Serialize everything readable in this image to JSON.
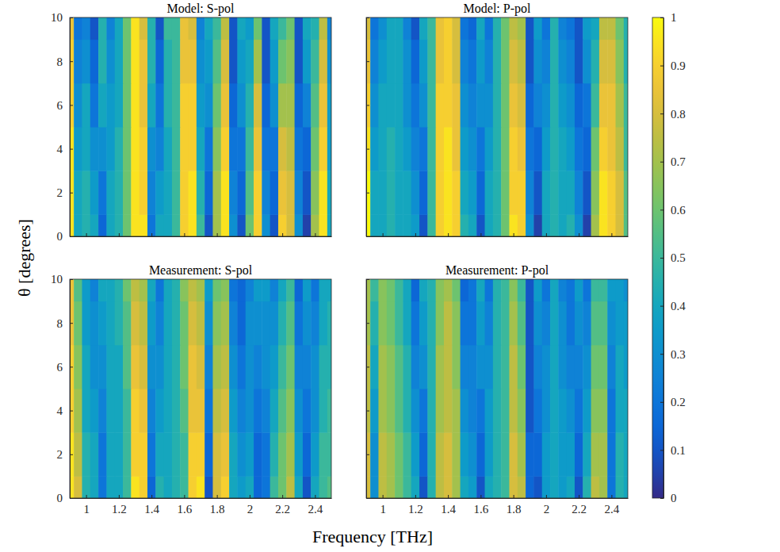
{
  "chart_data": {
    "type": "heatmap",
    "xlabel": "Frequency [THz]",
    "ylabel": "θ [degrees]",
    "x": [
      0.9,
      0.95,
      1.0,
      1.05,
      1.1,
      1.15,
      1.2,
      1.25,
      1.3,
      1.35,
      1.4,
      1.45,
      1.5,
      1.55,
      1.6,
      1.65,
      1.7,
      1.75,
      1.8,
      1.85,
      1.9,
      1.95,
      2.0,
      2.05,
      2.1,
      2.15,
      2.2,
      2.25,
      2.3,
      2.35,
      2.4,
      2.45,
      2.5
    ],
    "y": [
      0,
      2,
      4,
      6,
      8,
      10
    ],
    "xlim": [
      0.9,
      2.5
    ],
    "ylim": [
      0,
      10
    ],
    "xticks": [
      1,
      1.2,
      1.4,
      1.6,
      1.8,
      2,
      2.2,
      2.4
    ],
    "yticks": [
      0,
      2,
      4,
      6,
      8,
      10
    ],
    "colorbar": {
      "range": [
        0,
        1
      ],
      "ticks": [
        0,
        0.1,
        0.2,
        0.3,
        0.4,
        0.5,
        0.6,
        0.7,
        0.8,
        0.9,
        1
      ]
    },
    "panels": [
      {
        "title": "Model: S-pol",
        "tick_labels": "y",
        "z": [
          [
            0.95,
            0.4,
            0.45,
            0.4,
            0.15,
            0.4,
            0.45,
            0.6,
            0.95,
            0.95,
            0.2,
            0.4,
            0.4,
            0.5,
            0.9,
            0.95,
            0.5,
            0.1,
            0.7,
            0.95,
            0.3,
            0.1,
            0.6,
            0.9,
            0.3,
            0.1,
            0.9,
            0.8,
            0.3,
            0.05,
            0.7,
            0.95,
            0.4
          ],
          [
            0.95,
            0.4,
            0.45,
            0.35,
            0.2,
            0.4,
            0.45,
            0.6,
            0.95,
            0.9,
            0.25,
            0.35,
            0.4,
            0.5,
            0.9,
            0.95,
            0.45,
            0.15,
            0.7,
            0.95,
            0.25,
            0.15,
            0.55,
            0.9,
            0.25,
            0.15,
            0.85,
            0.8,
            0.25,
            0.1,
            0.65,
            0.95,
            0.4
          ],
          [
            0.95,
            0.35,
            0.4,
            0.3,
            0.3,
            0.35,
            0.45,
            0.6,
            0.95,
            0.9,
            0.3,
            0.25,
            0.4,
            0.5,
            0.9,
            0.9,
            0.4,
            0.2,
            0.65,
            0.9,
            0.2,
            0.2,
            0.5,
            0.85,
            0.2,
            0.2,
            0.8,
            0.75,
            0.2,
            0.15,
            0.6,
            0.9,
            0.35
          ],
          [
            0.9,
            0.3,
            0.4,
            0.2,
            0.4,
            0.35,
            0.4,
            0.6,
            0.95,
            0.85,
            0.4,
            0.2,
            0.45,
            0.5,
            0.9,
            0.9,
            0.35,
            0.3,
            0.6,
            0.85,
            0.15,
            0.3,
            0.45,
            0.8,
            0.15,
            0.3,
            0.7,
            0.7,
            0.15,
            0.25,
            0.55,
            0.85,
            0.35
          ],
          [
            0.9,
            0.25,
            0.3,
            0.15,
            0.45,
            0.3,
            0.4,
            0.6,
            0.95,
            0.85,
            0.45,
            0.15,
            0.45,
            0.5,
            0.85,
            0.85,
            0.3,
            0.35,
            0.55,
            0.8,
            0.1,
            0.35,
            0.4,
            0.7,
            0.1,
            0.35,
            0.6,
            0.65,
            0.1,
            0.35,
            0.5,
            0.8,
            0.3
          ],
          [
            0.85,
            0.2,
            0.25,
            0.1,
            0.45,
            0.25,
            0.4,
            0.6,
            0.95,
            0.8,
            0.45,
            0.1,
            0.5,
            0.5,
            0.85,
            0.8,
            0.25,
            0.4,
            0.5,
            0.75,
            0.1,
            0.4,
            0.35,
            0.6,
            0.1,
            0.4,
            0.5,
            0.6,
            0.1,
            0.4,
            0.45,
            0.75,
            0.25
          ]
        ]
      },
      {
        "title": "Model: P-pol",
        "tick_labels": false,
        "z": [
          [
            1.0,
            0.4,
            0.4,
            0.45,
            0.4,
            0.4,
            0.35,
            0.1,
            0.5,
            0.9,
            0.95,
            0.9,
            0.45,
            0.4,
            0.1,
            0.4,
            0.45,
            0.6,
            0.95,
            0.9,
            0.3,
            0.05,
            0.4,
            0.45,
            0.4,
            0.45,
            0.3,
            0.05,
            0.7,
            0.95,
            0.9,
            0.8,
            0.55
          ],
          [
            1.0,
            0.4,
            0.4,
            0.45,
            0.4,
            0.4,
            0.3,
            0.15,
            0.5,
            0.9,
            0.95,
            0.9,
            0.4,
            0.35,
            0.15,
            0.4,
            0.45,
            0.6,
            0.9,
            0.9,
            0.25,
            0.1,
            0.4,
            0.45,
            0.4,
            0.4,
            0.25,
            0.1,
            0.65,
            0.95,
            0.9,
            0.8,
            0.55
          ],
          [
            0.95,
            0.35,
            0.4,
            0.45,
            0.4,
            0.35,
            0.25,
            0.2,
            0.5,
            0.9,
            0.95,
            0.85,
            0.35,
            0.3,
            0.2,
            0.35,
            0.45,
            0.6,
            0.9,
            0.85,
            0.2,
            0.15,
            0.35,
            0.45,
            0.4,
            0.35,
            0.2,
            0.15,
            0.6,
            0.9,
            0.85,
            0.75,
            0.5
          ],
          [
            0.9,
            0.3,
            0.4,
            0.4,
            0.4,
            0.3,
            0.2,
            0.3,
            0.5,
            0.9,
            0.9,
            0.85,
            0.3,
            0.25,
            0.3,
            0.3,
            0.45,
            0.6,
            0.85,
            0.8,
            0.15,
            0.25,
            0.3,
            0.45,
            0.35,
            0.3,
            0.15,
            0.2,
            0.5,
            0.85,
            0.85,
            0.7,
            0.5
          ],
          [
            0.85,
            0.25,
            0.35,
            0.4,
            0.4,
            0.3,
            0.15,
            0.35,
            0.5,
            0.85,
            0.9,
            0.8,
            0.25,
            0.2,
            0.35,
            0.25,
            0.45,
            0.6,
            0.8,
            0.75,
            0.1,
            0.3,
            0.25,
            0.45,
            0.3,
            0.25,
            0.1,
            0.3,
            0.45,
            0.8,
            0.8,
            0.65,
            0.45
          ],
          [
            0.8,
            0.2,
            0.3,
            0.4,
            0.4,
            0.25,
            0.1,
            0.4,
            0.5,
            0.85,
            0.9,
            0.8,
            0.2,
            0.15,
            0.4,
            0.2,
            0.45,
            0.6,
            0.75,
            0.7,
            0.1,
            0.35,
            0.2,
            0.45,
            0.25,
            0.2,
            0.1,
            0.35,
            0.4,
            0.75,
            0.75,
            0.6,
            0.45
          ]
        ]
      },
      {
        "title": "Measurement: S-pol",
        "tick_labels": true,
        "z": [
          [
            0.95,
            0.8,
            0.45,
            0.4,
            0.2,
            0.4,
            0.4,
            0.5,
            0.95,
            0.9,
            0.15,
            0.45,
            0.4,
            0.45,
            0.5,
            0.9,
            0.95,
            0.1,
            0.8,
            0.9,
            0.4,
            0.35,
            0.4,
            0.15,
            0.2,
            0.5,
            0.6,
            0.75,
            0.4,
            0.1,
            0.4,
            0.5,
            0.55
          ],
          [
            0.95,
            0.75,
            0.45,
            0.4,
            0.2,
            0.4,
            0.4,
            0.5,
            0.9,
            0.9,
            0.2,
            0.4,
            0.4,
            0.45,
            0.5,
            0.9,
            0.9,
            0.15,
            0.8,
            0.85,
            0.4,
            0.3,
            0.35,
            0.15,
            0.2,
            0.45,
            0.6,
            0.7,
            0.35,
            0.15,
            0.35,
            0.5,
            0.5
          ],
          [
            0.9,
            0.7,
            0.4,
            0.35,
            0.25,
            0.4,
            0.4,
            0.5,
            0.9,
            0.85,
            0.25,
            0.35,
            0.4,
            0.45,
            0.55,
            0.85,
            0.85,
            0.2,
            0.75,
            0.8,
            0.35,
            0.25,
            0.3,
            0.2,
            0.25,
            0.4,
            0.55,
            0.65,
            0.3,
            0.2,
            0.3,
            0.45,
            0.5
          ],
          [
            0.9,
            0.65,
            0.4,
            0.3,
            0.3,
            0.4,
            0.4,
            0.55,
            0.85,
            0.8,
            0.3,
            0.3,
            0.4,
            0.45,
            0.6,
            0.85,
            0.8,
            0.25,
            0.7,
            0.75,
            0.3,
            0.2,
            0.3,
            0.25,
            0.3,
            0.35,
            0.5,
            0.6,
            0.25,
            0.25,
            0.3,
            0.45,
            0.45
          ],
          [
            0.85,
            0.6,
            0.35,
            0.3,
            0.35,
            0.4,
            0.45,
            0.55,
            0.8,
            0.75,
            0.35,
            0.25,
            0.4,
            0.45,
            0.6,
            0.8,
            0.75,
            0.3,
            0.65,
            0.7,
            0.25,
            0.15,
            0.3,
            0.3,
            0.3,
            0.3,
            0.45,
            0.55,
            0.2,
            0.3,
            0.25,
            0.4,
            0.45
          ],
          [
            0.85,
            0.55,
            0.35,
            0.25,
            0.4,
            0.4,
            0.45,
            0.6,
            0.75,
            0.7,
            0.4,
            0.2,
            0.4,
            0.45,
            0.65,
            0.75,
            0.7,
            0.35,
            0.6,
            0.65,
            0.2,
            0.15,
            0.25,
            0.35,
            0.35,
            0.25,
            0.4,
            0.5,
            0.15,
            0.35,
            0.2,
            0.4,
            0.4
          ]
        ]
      },
      {
        "title": "Measurement: P-pol",
        "tick_labels": "x",
        "z": [
          [
            0.8,
            0.3,
            0.75,
            0.7,
            0.6,
            0.5,
            0.4,
            0.1,
            0.45,
            0.75,
            0.8,
            0.7,
            0.4,
            0.35,
            0.1,
            0.4,
            0.45,
            0.5,
            0.8,
            0.75,
            0.15,
            0.1,
            0.35,
            0.4,
            0.35,
            0.4,
            0.1,
            0.45,
            0.75,
            0.7,
            0.2,
            0.45,
            0.4
          ],
          [
            0.8,
            0.3,
            0.75,
            0.7,
            0.6,
            0.5,
            0.35,
            0.15,
            0.45,
            0.75,
            0.8,
            0.7,
            0.35,
            0.3,
            0.15,
            0.35,
            0.45,
            0.5,
            0.8,
            0.7,
            0.15,
            0.15,
            0.35,
            0.4,
            0.35,
            0.35,
            0.15,
            0.4,
            0.7,
            0.7,
            0.2,
            0.45,
            0.4
          ],
          [
            0.75,
            0.35,
            0.7,
            0.65,
            0.55,
            0.45,
            0.3,
            0.2,
            0.45,
            0.7,
            0.75,
            0.7,
            0.3,
            0.25,
            0.2,
            0.35,
            0.45,
            0.5,
            0.75,
            0.65,
            0.1,
            0.2,
            0.3,
            0.4,
            0.35,
            0.3,
            0.2,
            0.35,
            0.65,
            0.65,
            0.2,
            0.4,
            0.4
          ],
          [
            0.75,
            0.4,
            0.7,
            0.65,
            0.55,
            0.45,
            0.25,
            0.3,
            0.45,
            0.7,
            0.75,
            0.65,
            0.25,
            0.25,
            0.3,
            0.3,
            0.45,
            0.5,
            0.75,
            0.6,
            0.1,
            0.25,
            0.3,
            0.4,
            0.3,
            0.25,
            0.25,
            0.3,
            0.6,
            0.6,
            0.25,
            0.4,
            0.35
          ],
          [
            0.7,
            0.45,
            0.65,
            0.6,
            0.5,
            0.4,
            0.2,
            0.35,
            0.45,
            0.65,
            0.75,
            0.65,
            0.2,
            0.2,
            0.35,
            0.25,
            0.45,
            0.5,
            0.7,
            0.55,
            0.1,
            0.3,
            0.25,
            0.4,
            0.3,
            0.2,
            0.3,
            0.25,
            0.55,
            0.55,
            0.3,
            0.35,
            0.35
          ],
          [
            0.7,
            0.5,
            0.65,
            0.6,
            0.5,
            0.4,
            0.15,
            0.4,
            0.45,
            0.65,
            0.7,
            0.6,
            0.15,
            0.2,
            0.4,
            0.2,
            0.45,
            0.5,
            0.65,
            0.5,
            0.1,
            0.35,
            0.2,
            0.4,
            0.25,
            0.2,
            0.35,
            0.2,
            0.5,
            0.5,
            0.35,
            0.35,
            0.3
          ]
        ]
      }
    ]
  }
}
